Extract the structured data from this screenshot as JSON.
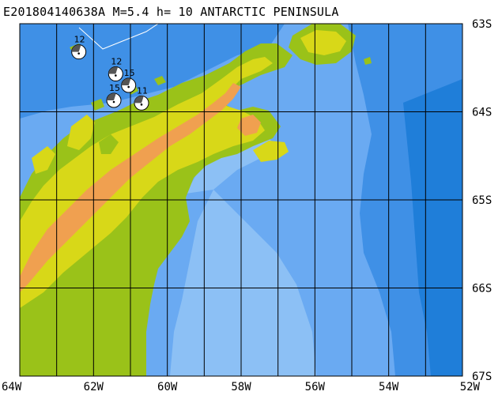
{
  "title": "E201804140638A  M=5.4  h= 10  ANTARCTIC PENINSULA",
  "map": {
    "lon_labels": [
      "64W",
      "62W",
      "60W",
      "58W",
      "56W",
      "54W",
      "52W"
    ],
    "lat_labels": [
      "63S",
      "64S",
      "65S",
      "66S",
      "67S"
    ],
    "lon_range": [
      -64,
      -52
    ],
    "lat_range": [
      -67,
      -63
    ],
    "colors": {
      "deep_ocean": "#1f7ed9",
      "mid_ocean": "#3f90e6",
      "shelf_ocean": "#6aaaf2",
      "shallow_ocean": "#8cc0f5",
      "lowland": "#9ac219",
      "upland": "#d8d818",
      "highland": "#f0a050",
      "grid": "#000000"
    }
  },
  "events": [
    {
      "label": "12",
      "lon": -62.4,
      "lat": -63.32
    },
    {
      "label": "12",
      "lon": -61.4,
      "lat": -63.57
    },
    {
      "label": "15",
      "lon": -61.05,
      "lat": -63.7
    },
    {
      "label": "15",
      "lon": -61.45,
      "lat": -63.87
    },
    {
      "label": "11",
      "lon": -60.7,
      "lat": -63.9
    }
  ]
}
